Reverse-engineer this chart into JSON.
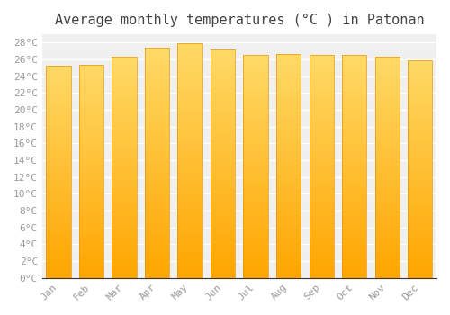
{
  "title": "Average monthly temperatures (°C ) in Patonan",
  "months": [
    "Jan",
    "Feb",
    "Mar",
    "Apr",
    "May",
    "Jun",
    "Jul",
    "Aug",
    "Sep",
    "Oct",
    "Nov",
    "Dec"
  ],
  "values": [
    25.3,
    25.4,
    26.3,
    27.4,
    27.9,
    27.2,
    26.6,
    26.7,
    26.6,
    26.6,
    26.3,
    25.9
  ],
  "ylim": [
    0,
    29
  ],
  "yticks": [
    0,
    2,
    4,
    6,
    8,
    10,
    12,
    14,
    16,
    18,
    20,
    22,
    24,
    26,
    28
  ],
  "bar_color_bottom": "#FFA500",
  "bar_color_top": "#FFD966",
  "bar_border_color": "#E8950A",
  "background_color": "#FFFFFF",
  "plot_bg_color": "#F0F0F0",
  "grid_color": "#FFFFFF",
  "title_fontsize": 11,
  "tick_fontsize": 8,
  "tick_color": "#999999",
  "font_family": "monospace",
  "bar_width": 0.75
}
